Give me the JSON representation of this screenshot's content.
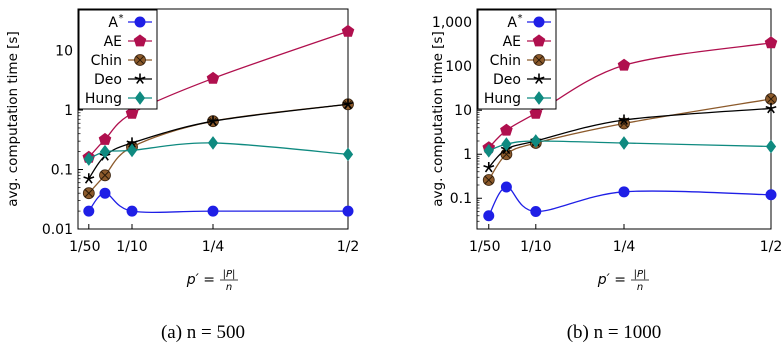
{
  "chart_data": [
    {
      "type": "line",
      "caption": "(a) n = 500",
      "ylabel": "avg. computation time [s]",
      "xlabel_main": "p′ =",
      "xlabel_frac_num": "|P|",
      "xlabel_frac_den": "n",
      "yscale": "log",
      "ylim": [
        0.01,
        50
      ],
      "xlim": [
        0,
        0.5
      ],
      "xticks": [
        {
          "value": 0.02,
          "label": "1/50"
        },
        {
          "value": 0.1,
          "label": "1/10"
        },
        {
          "value": 0.25,
          "label": "1/4"
        },
        {
          "value": 0.5,
          "label": "1/2"
        }
      ],
      "yticks": [
        {
          "value": 0.01,
          "label": "0.01"
        },
        {
          "value": 0.1,
          "label": "0.1"
        },
        {
          "value": 1,
          "label": "1"
        },
        {
          "value": 10,
          "label": "10"
        }
      ],
      "legend_position": "top-left",
      "series": [
        {
          "name": "A*",
          "color": "#1f1fe6",
          "marker": "circle",
          "x": [
            0.02,
            0.05,
            0.1,
            0.25,
            0.5
          ],
          "y": [
            0.02,
            0.04,
            0.02,
            0.02,
            0.02
          ]
        },
        {
          "name": "AE",
          "color": "#b0104e",
          "marker": "pentagon",
          "x": [
            0.02,
            0.05,
            0.1,
            0.25,
            0.5
          ],
          "y": [
            0.16,
            0.32,
            0.88,
            3.4,
            21
          ]
        },
        {
          "name": "Chin",
          "color": "#8c5a2b",
          "marker": "otimes",
          "x": [
            0.02,
            0.05,
            0.1,
            0.25,
            0.5
          ],
          "y": [
            0.04,
            0.08,
            0.24,
            0.65,
            1.25
          ]
        },
        {
          "name": "Deo",
          "color": "#000000",
          "marker": "star",
          "x": [
            0.02,
            0.05,
            0.1,
            0.25,
            0.5
          ],
          "y": [
            0.07,
            0.17,
            0.28,
            0.65,
            1.25
          ]
        },
        {
          "name": "Hung",
          "color": "#0f8a80",
          "marker": "diamond",
          "x": [
            0.02,
            0.05,
            0.1,
            0.25,
            0.5
          ],
          "y": [
            0.15,
            0.2,
            0.21,
            0.28,
            0.18
          ]
        }
      ]
    },
    {
      "type": "line",
      "caption": "(b) n = 1000",
      "ylabel": "avg. computation time [s]",
      "xlabel_main": "p′ =",
      "xlabel_frac_num": "|P|",
      "xlabel_frac_den": "n",
      "yscale": "log",
      "ylim": [
        0.02,
        2000
      ],
      "xlim": [
        0,
        0.5
      ],
      "xticks": [
        {
          "value": 0.02,
          "label": "1/50"
        },
        {
          "value": 0.1,
          "label": "1/10"
        },
        {
          "value": 0.25,
          "label": "1/4"
        },
        {
          "value": 0.5,
          "label": "1/2"
        }
      ],
      "yticks": [
        {
          "value": 0.1,
          "label": "0.1"
        },
        {
          "value": 1,
          "label": "1"
        },
        {
          "value": 10,
          "label": "10"
        },
        {
          "value": 100,
          "label": "100"
        },
        {
          "value": 1000,
          "label": "1,000"
        }
      ],
      "legend_position": "top-left",
      "series": [
        {
          "name": "A*",
          "color": "#1f1fe6",
          "marker": "circle",
          "x": [
            0.02,
            0.05,
            0.1,
            0.25,
            0.5
          ],
          "y": [
            0.04,
            0.18,
            0.05,
            0.14,
            0.12
          ]
        },
        {
          "name": "AE",
          "color": "#b0104e",
          "marker": "pentagon",
          "x": [
            0.02,
            0.05,
            0.1,
            0.25,
            0.5
          ],
          "y": [
            1.4,
            3.5,
            8.5,
            105,
            340
          ]
        },
        {
          "name": "Chin",
          "color": "#8c5a2b",
          "marker": "otimes",
          "x": [
            0.02,
            0.05,
            0.1,
            0.25,
            0.5
          ],
          "y": [
            0.26,
            1.0,
            1.8,
            5.0,
            18
          ]
        },
        {
          "name": "Deo",
          "color": "#000000",
          "marker": "star",
          "x": [
            0.02,
            0.05,
            0.1,
            0.25,
            0.5
          ],
          "y": [
            0.5,
            1.3,
            2.0,
            6.0,
            11
          ]
        },
        {
          "name": "Hung",
          "color": "#0f8a80",
          "marker": "diamond",
          "x": [
            0.02,
            0.05,
            0.1,
            0.25,
            0.5
          ],
          "y": [
            1.2,
            1.7,
            2.0,
            1.8,
            1.5
          ]
        }
      ]
    }
  ]
}
